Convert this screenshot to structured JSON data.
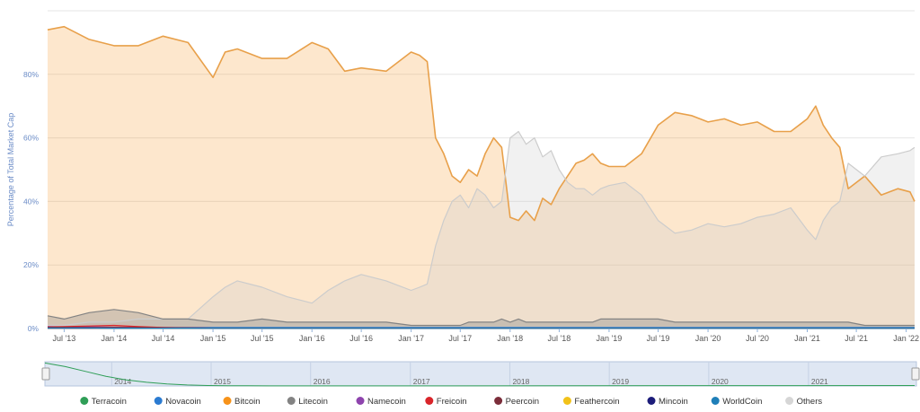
{
  "chart_data": {
    "type": "area",
    "ylabel": "Percentage of Total Market Cap",
    "y_ticks": [
      "0%",
      "20%",
      "40%",
      "60%",
      "80%"
    ],
    "ylim": [
      0,
      100
    ],
    "x_ticks": [
      "Jul '13",
      "Jan '14",
      "Jul '14",
      "Jan '15",
      "Jul '15",
      "Jan '16",
      "Jul '16",
      "Jan '17",
      "Jul '17",
      "Jan '18",
      "Jul '18",
      "Jan '19",
      "Jul '19",
      "Jan '20",
      "Jul '20",
      "Jan '21",
      "Jul '21",
      "Jan '22"
    ],
    "navigator_years": [
      "2014",
      "2015",
      "2016",
      "2017",
      "2018",
      "2019",
      "2020",
      "2021"
    ],
    "x_dates": [
      "2013-05-01",
      "2013-07-01",
      "2013-10-01",
      "2014-01-01",
      "2014-04-01",
      "2014-07-01",
      "2014-10-01",
      "2015-01-01",
      "2015-02-15",
      "2015-04-01",
      "2015-07-01",
      "2015-10-01",
      "2016-01-01",
      "2016-03-01",
      "2016-05-01",
      "2016-07-01",
      "2016-10-01",
      "2017-01-01",
      "2017-02-01",
      "2017-03-01",
      "2017-04-01",
      "2017-05-01",
      "2017-06-01",
      "2017-07-01",
      "2017-08-01",
      "2017-09-01",
      "2017-10-01",
      "2017-11-01",
      "2017-12-01",
      "2018-01-01",
      "2018-02-01",
      "2018-03-01",
      "2018-04-01",
      "2018-05-01",
      "2018-06-01",
      "2018-07-01",
      "2018-08-01",
      "2018-09-01",
      "2018-10-01",
      "2018-11-01",
      "2018-12-01",
      "2019-01-01",
      "2019-03-01",
      "2019-05-01",
      "2019-07-01",
      "2019-09-01",
      "2019-11-01",
      "2020-01-01",
      "2020-03-01",
      "2020-05-01",
      "2020-07-01",
      "2020-09-01",
      "2020-11-01",
      "2021-01-01",
      "2021-02-01",
      "2021-03-01",
      "2021-04-01",
      "2021-05-01",
      "2021-06-01",
      "2021-08-01",
      "2021-10-01",
      "2021-12-01",
      "2022-01-15",
      "2022-02-01"
    ],
    "series": [
      {
        "name": "Bitcoin",
        "color": "#f7931a",
        "line": "#e8a04a",
        "values": [
          94,
          95,
          91,
          89,
          89,
          92,
          90,
          79,
          87,
          88,
          85,
          85,
          90,
          88,
          81,
          82,
          81,
          87,
          86,
          84,
          60,
          55,
          48,
          46,
          50,
          48,
          55,
          60,
          57,
          35,
          34,
          37,
          34,
          41,
          39,
          44,
          48,
          52,
          53,
          55,
          52,
          51,
          51,
          55,
          64,
          68,
          67,
          65,
          66,
          64,
          65,
          62,
          62,
          66,
          70,
          64,
          60,
          57,
          44,
          48,
          42,
          44,
          43,
          40
        ]
      },
      {
        "name": "Others",
        "color": "#cccccc",
        "line": "#cccccc",
        "values": [
          1,
          1,
          2,
          2,
          3,
          3,
          3,
          10,
          13,
          15,
          13,
          10,
          8,
          12,
          15,
          17,
          15,
          12,
          13,
          14,
          26,
          34,
          40,
          42,
          38,
          44,
          42,
          38,
          40,
          60,
          62,
          58,
          60,
          54,
          56,
          50,
          46,
          44,
          44,
          42,
          44,
          45,
          46,
          42,
          34,
          30,
          31,
          33,
          32,
          33,
          35,
          36,
          38,
          31,
          28,
          34,
          38,
          40,
          52,
          48,
          54,
          55,
          56,
          57
        ]
      },
      {
        "name": "Litecoin",
        "color": "#838383",
        "line": "#838383",
        "values": [
          4,
          3,
          5,
          6,
          5,
          3,
          3,
          2,
          2,
          2,
          3,
          2,
          2,
          2,
          2,
          2,
          2,
          1,
          1,
          1,
          1,
          1,
          1,
          1,
          2,
          2,
          2,
          2,
          3,
          2,
          3,
          2,
          2,
          2,
          2,
          2,
          2,
          2,
          2,
          2,
          3,
          3,
          3,
          3,
          3,
          2,
          2,
          2,
          2,
          2,
          2,
          2,
          2,
          2,
          2,
          2,
          2,
          2,
          2,
          1,
          1,
          1,
          1,
          1
        ]
      },
      {
        "name": "Terracoin",
        "color": "#2f9e57",
        "line": "#2f9e57",
        "values": [
          0.3,
          0.2,
          0.2,
          0.1,
          0.1,
          0.1,
          0.1,
          0.05,
          0.05,
          0.05,
          0.05,
          0.05,
          0.05,
          0.05,
          0.05,
          0.05,
          0.05,
          0.05,
          0.05,
          0.05,
          0.05,
          0.05,
          0.05,
          0.05,
          0.05,
          0.05,
          0.05,
          0.05,
          0.05,
          0.05,
          0.05,
          0.05,
          0.05,
          0.05,
          0.05,
          0.05,
          0.05,
          0.05,
          0.05,
          0.05,
          0.05,
          0.05,
          0.05,
          0.05,
          0.05,
          0.05,
          0.05,
          0.05,
          0.05,
          0.05,
          0.05,
          0.05,
          0.05,
          0.05,
          0.05,
          0.05,
          0.05,
          0.05,
          0.05,
          0.05,
          0.05,
          0.05,
          0.05,
          0.05
        ]
      },
      {
        "name": "Novacoin",
        "color": "#2b7bd1",
        "line": "#2b7bd1",
        "values": [
          0.4,
          0.4,
          0.4,
          0.3,
          0.3,
          0.3,
          0.3,
          0.3,
          0.3,
          0.3,
          0.3,
          0.3,
          0.3,
          0.3,
          0.3,
          0.3,
          0.3,
          0.3,
          0.3,
          0.3,
          0.3,
          0.3,
          0.3,
          0.3,
          0.3,
          0.3,
          0.3,
          0.3,
          0.3,
          0.3,
          0.3,
          0.3,
          0.3,
          0.3,
          0.3,
          0.3,
          0.3,
          0.3,
          0.3,
          0.3,
          0.3,
          0.3,
          0.3,
          0.3,
          0.3,
          0.3,
          0.3,
          0.3,
          0.3,
          0.3,
          0.3,
          0.3,
          0.3,
          0.3,
          0.3,
          0.3,
          0.3,
          0.3,
          0.3,
          0.3,
          0.3,
          0.3,
          0.3,
          0.3
        ]
      },
      {
        "name": "Namecoin",
        "color": "#8e44ad",
        "line": "#8e44ad",
        "values": [
          0.6,
          0.5,
          0.5,
          0.4,
          0.3,
          0.2,
          0.2,
          0.1,
          0.1,
          0.1,
          0.1,
          0.1,
          0.1,
          0.1,
          0.1,
          0.1,
          0.1,
          0.1,
          0.1,
          0.1,
          0.1,
          0.1,
          0.1,
          0.1,
          0.1,
          0.1,
          0.1,
          0.1,
          0.1,
          0.1,
          0.1,
          0.1,
          0.1,
          0.1,
          0.1,
          0.1,
          0.1,
          0.1,
          0.1,
          0.1,
          0.1,
          0.1,
          0.1,
          0.1,
          0.1,
          0.1,
          0.1,
          0.1,
          0.1,
          0.1,
          0.1,
          0.1,
          0.1,
          0.1,
          0.1,
          0.1,
          0.1,
          0.1,
          0.1,
          0.1,
          0.1,
          0.1,
          0.1,
          0.1
        ]
      },
      {
        "name": "Freicoin",
        "color": "#d9252a",
        "line": "#d9252a",
        "values": [
          0.5,
          0.6,
          0.8,
          1.0,
          0.6,
          0.3,
          0.2,
          0.1,
          0.1,
          0.1,
          0.1,
          0.1,
          0.1,
          0.1,
          0.1,
          0.1,
          0.1,
          0.1,
          0.1,
          0.1,
          0.1,
          0.1,
          0.1,
          0.1,
          0.1,
          0.1,
          0.1,
          0.1,
          0.1,
          0.1,
          0.1,
          0.1,
          0.1,
          0.1,
          0.1,
          0.1,
          0.1,
          0.1,
          0.1,
          0.1,
          0.1,
          0.1,
          0.1,
          0.1,
          0.1,
          0.1,
          0.1,
          0.1,
          0.1,
          0.1,
          0.1,
          0.1,
          0.1,
          0.1,
          0.1,
          0.1,
          0.1,
          0.1,
          0.1,
          0.1,
          0.1,
          0.1,
          0.1,
          0.1
        ]
      },
      {
        "name": "Peercoin",
        "color": "#7b2d3a",
        "line": "#7b2d3a",
        "values": [
          0.3,
          0.3,
          0.3,
          0.3,
          0.3,
          0.2,
          0.2,
          0.1,
          0.1,
          0.1,
          0.1,
          0.1,
          0.1,
          0.1,
          0.1,
          0.1,
          0.1,
          0.1,
          0.1,
          0.1,
          0.1,
          0.1,
          0.1,
          0.1,
          0.1,
          0.1,
          0.1,
          0.1,
          0.1,
          0.1,
          0.1,
          0.1,
          0.1,
          0.1,
          0.1,
          0.1,
          0.1,
          0.1,
          0.1,
          0.1,
          0.1,
          0.1,
          0.1,
          0.1,
          0.1,
          0.1,
          0.1,
          0.1,
          0.1,
          0.1,
          0.1,
          0.1,
          0.1,
          0.1,
          0.1,
          0.1,
          0.1,
          0.1,
          0.1,
          0.1,
          0.1,
          0.1,
          0.1,
          0.1
        ]
      },
      {
        "name": "Feathercoin",
        "color": "#f2c21a",
        "line": "#f2c21a",
        "values": [
          0.1,
          0.1,
          0.1,
          0.1,
          0.1,
          0.1,
          0.1,
          0.05,
          0.05,
          0.05,
          0.05,
          0.05,
          0.05,
          0.05,
          0.05,
          0.05,
          0.05,
          0.05,
          0.05,
          0.05,
          0.05,
          0.05,
          0.05,
          0.05,
          0.05,
          0.05,
          0.05,
          0.05,
          0.05,
          0.05,
          0.05,
          0.05,
          0.05,
          0.05,
          0.05,
          0.05,
          0.05,
          0.05,
          0.05,
          0.05,
          0.05,
          0.05,
          0.05,
          0.05,
          0.05,
          0.05,
          0.05,
          0.05,
          0.05,
          0.05,
          0.05,
          0.05,
          0.05,
          0.05,
          0.05,
          0.05,
          0.05,
          0.05,
          0.05,
          0.05,
          0.05,
          0.05,
          0.05,
          0.05
        ]
      },
      {
        "name": "Mincoin",
        "color": "#1c1c7a",
        "line": "#1c1c7a",
        "values": [
          0.1,
          0.1,
          0.1,
          0.1,
          0.1,
          0.1,
          0.1,
          0.05,
          0.05,
          0.05,
          0.05,
          0.05,
          0.05,
          0.05,
          0.05,
          0.05,
          0.05,
          0.05,
          0.05,
          0.05,
          0.05,
          0.05,
          0.05,
          0.05,
          0.05,
          0.05,
          0.05,
          0.05,
          0.05,
          0.05,
          0.05,
          0.05,
          0.05,
          0.05,
          0.05,
          0.05,
          0.05,
          0.05,
          0.05,
          0.05,
          0.05,
          0.05,
          0.05,
          0.05,
          0.05,
          0.05,
          0.05,
          0.05,
          0.05,
          0.05,
          0.05,
          0.05,
          0.05,
          0.05,
          0.05,
          0.05,
          0.05,
          0.05,
          0.05,
          0.05,
          0.05,
          0.05,
          0.05,
          0.05
        ]
      },
      {
        "name": "WorldCoin",
        "color": "#1f7fb8",
        "line": "#1f7fb8",
        "values": [
          0.2,
          0.2,
          0.2,
          0.1,
          0.1,
          0.1,
          0.1,
          0.05,
          0.05,
          0.05,
          0.05,
          0.05,
          0.05,
          0.05,
          0.05,
          0.05,
          0.05,
          0.05,
          0.05,
          0.05,
          0.05,
          0.05,
          0.05,
          0.05,
          0.05,
          0.05,
          0.05,
          0.05,
          0.05,
          0.05,
          0.05,
          0.05,
          0.05,
          0.05,
          0.05,
          0.05,
          0.05,
          0.05,
          0.05,
          0.05,
          0.05,
          0.05,
          0.05,
          0.05,
          0.05,
          0.05,
          0.05,
          0.05,
          0.05,
          0.05,
          0.05,
          0.05,
          0.05,
          0.05,
          0.05,
          0.05,
          0.05,
          0.05,
          0.05,
          0.05,
          0.05,
          0.05,
          0.05,
          0.05
        ]
      }
    ],
    "navigator_values": [
      95,
      80,
      60,
      40,
      25,
      15,
      8,
      4,
      2,
      1,
      1,
      0.5,
      0.5,
      0.5,
      0.5,
      0.5
    ],
    "legend": {
      "position": "bottom",
      "items": [
        {
          "name": "Terracoin",
          "color": "#2f9e57"
        },
        {
          "name": "Novacoin",
          "color": "#2b7bd1"
        },
        {
          "name": "Bitcoin",
          "color": "#f7931a"
        },
        {
          "name": "Litecoin",
          "color": "#838383"
        },
        {
          "name": "Namecoin",
          "color": "#8e44ad"
        },
        {
          "name": "Freicoin",
          "color": "#d9252a"
        },
        {
          "name": "Peercoin",
          "color": "#7b2d3a"
        },
        {
          "name": "Feathercoin",
          "color": "#f2c21a"
        },
        {
          "name": "Mincoin",
          "color": "#1c1c7a"
        },
        {
          "name": "WorldCoin",
          "color": "#1f7fb8"
        },
        {
          "name": "Others",
          "color": "#d6d6d6"
        }
      ]
    },
    "grid": true
  }
}
